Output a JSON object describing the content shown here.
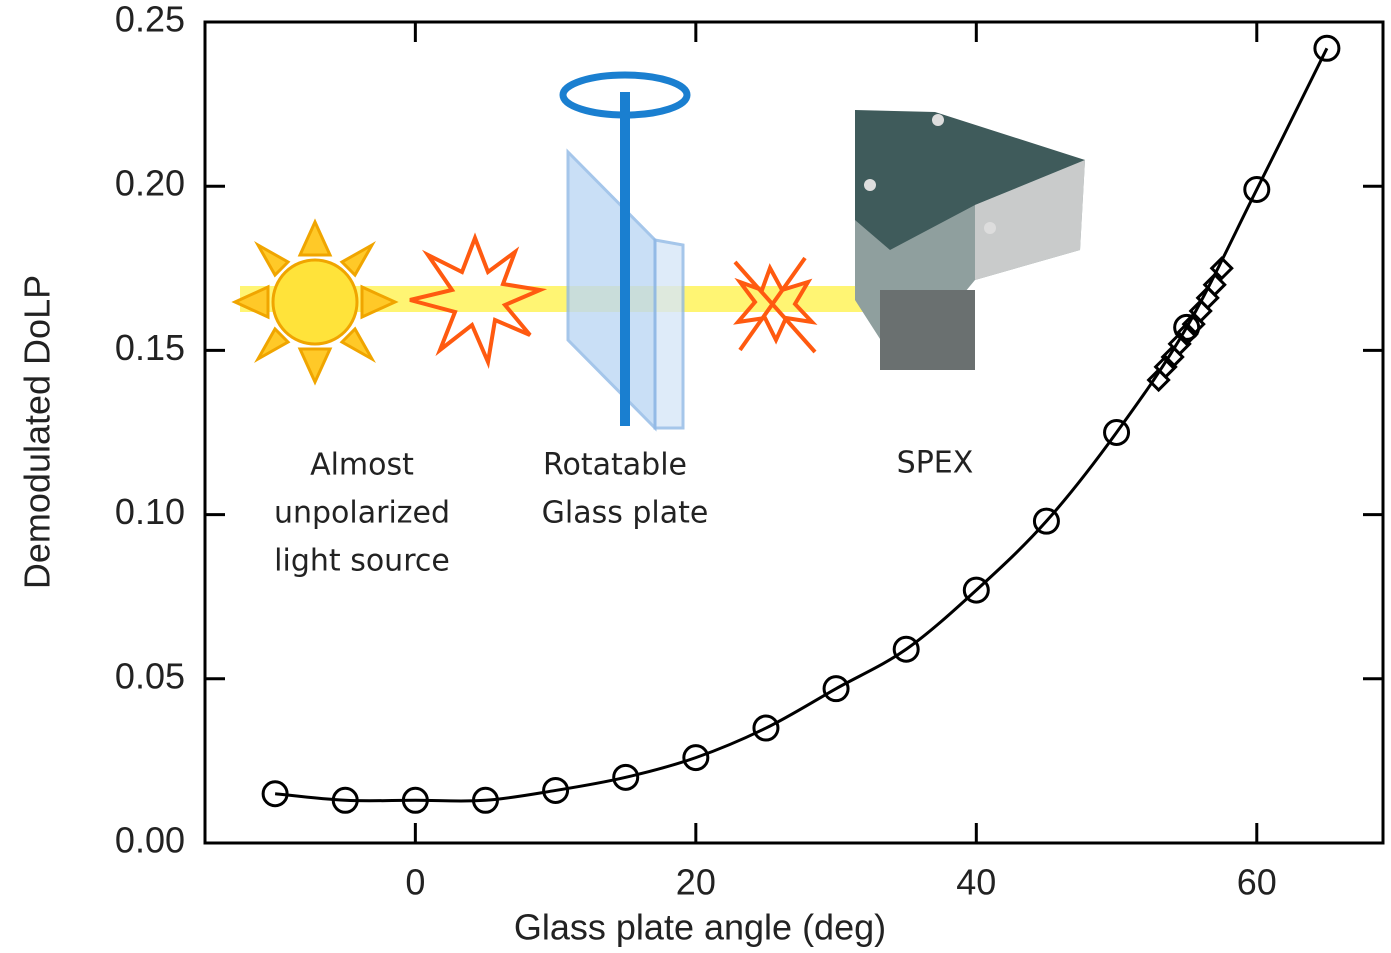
{
  "chart_data": {
    "type": "line",
    "x_label": "Glass plate angle (deg)",
    "y_label": "Demodulated DoLP",
    "xlim": [
      -15,
      69
    ],
    "xticks": [
      0,
      20,
      40,
      60
    ],
    "ylim": [
      0,
      0.25
    ],
    "yticks": [
      {
        "value": 0,
        "label": "0.00"
      },
      0.05,
      {
        "value": 0.1,
        "label": "0.10"
      },
      0.15,
      {
        "value": 0.2,
        "label": "0.20"
      },
      0.25
    ],
    "annotations": [
      "Almost",
      "unpolarized",
      "light source",
      "Rotatable",
      "Glass plate",
      "SPEX"
    ],
    "series": [
      {
        "marker": "circle",
        "color": "#000000",
        "x": [
          -10,
          -5,
          0,
          5,
          10,
          15,
          20,
          25,
          30,
          35,
          40,
          45,
          50,
          55,
          60,
          65
        ],
        "values": [
          0.015,
          0.013,
          0.013,
          0.013,
          0.016,
          0.02,
          0.026,
          0.035,
          0.047,
          0.059,
          0.077,
          0.098,
          0.125,
          0.157,
          0.199,
          0.242
        ]
      },
      {
        "marker": "diamond",
        "color": "#000000",
        "x": [
          53,
          53.5,
          54,
          54.5,
          55,
          55.5,
          56,
          56.5,
          57,
          57.5
        ],
        "values": [
          0.141,
          0.145,
          0.148,
          0.152,
          0.155,
          0.158,
          0.162,
          0.166,
          0.17,
          0.175
        ]
      }
    ]
  }
}
